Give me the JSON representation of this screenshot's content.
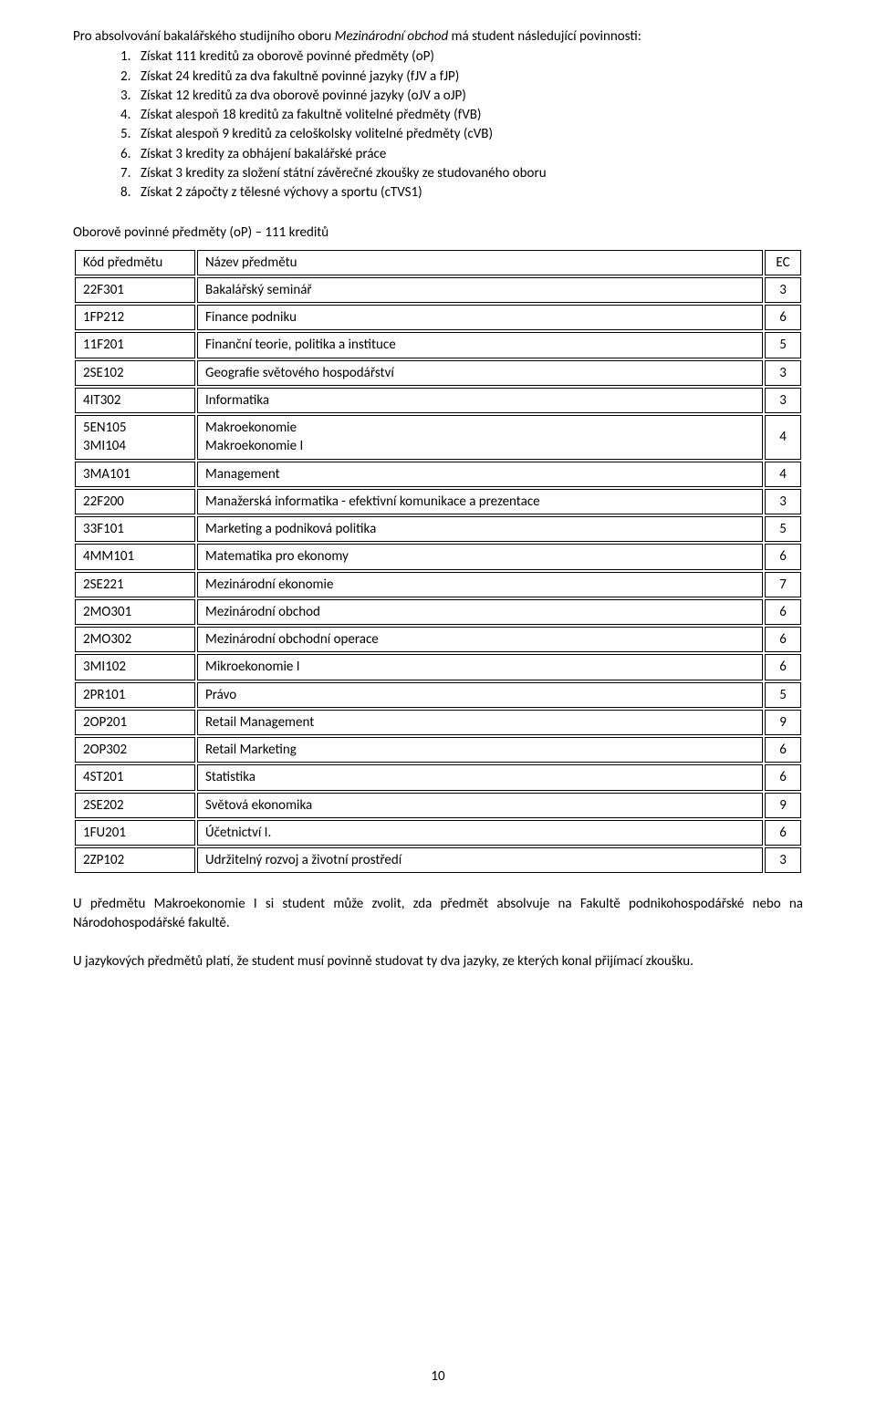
{
  "intro": {
    "prefix": "Pro absolvování bakalářského studijního oboru ",
    "italic": "Mezinárodní obchod",
    "suffix": " má student následující povinnosti:"
  },
  "list": [
    "Získat 111 kreditů za oborově povinné předměty (oP)",
    "Získat 24 kreditů za dva fakultně povinné jazyky (fJV a fJP)",
    "Získat 12 kreditů za dva oborově povinné jazyky (oJV a oJP)",
    "Získat alespoň 18 kreditů za fakultně volitelné předměty (fVB)",
    "Získat alespoň 9 kreditů za celoškolsky volitelné předměty (cVB)",
    "Získat 3 kredity za obhájení bakalářské práce",
    "Získat 3 kredity za složení státní závěrečné zkoušky ze studovaného oboru",
    "Získat 2 zápočty z tělesné výchovy a sportu (cTVS1)"
  ],
  "table": {
    "heading": "Oborově povinné předměty (oP) – 111 kreditů",
    "columns": {
      "code": "Kód předmětu",
      "name": "Název předmětu",
      "ec": "EC"
    },
    "rows": [
      {
        "code": "22F301",
        "name": "Bakalářský seminář",
        "ec": "3"
      },
      {
        "code": "1FP212",
        "name": "Finance podniku",
        "ec": "6"
      },
      {
        "code": "11F201",
        "name": "Finanční teorie, politika a instituce",
        "ec": "5"
      },
      {
        "code": "2SE102",
        "name": "Geografie světového hospodářství",
        "ec": "3"
      },
      {
        "code": "4IT302",
        "name": "Informatika",
        "ec": "3"
      }
    ],
    "merged": {
      "code1": "5EN105",
      "code2": "3MI104",
      "name1": "Makroekonomie",
      "name2": "Makroekonomie I",
      "ec": "4"
    },
    "rows2": [
      {
        "code": "3MA101",
        "name": "Management",
        "ec": "4"
      },
      {
        "code": "22F200",
        "name": "Manažerská informatika - efektivní komunikace a prezentace",
        "ec": "3"
      },
      {
        "code": "33F101",
        "name": "Marketing a podniková politika",
        "ec": "5"
      },
      {
        "code": "4MM101",
        "name": "Matematika pro ekonomy",
        "ec": "6"
      },
      {
        "code": "2SE221",
        "name": "Mezinárodní ekonomie",
        "ec": "7"
      },
      {
        "code": "2MO301",
        "name": "Mezinárodní obchod",
        "ec": "6"
      },
      {
        "code": "2MO302",
        "name": "Mezinárodní obchodní operace",
        "ec": "6"
      },
      {
        "code": "3MI102",
        "name": "Mikroekonomie I",
        "ec": "6"
      },
      {
        "code": "2PR101",
        "name": "Právo",
        "ec": "5"
      },
      {
        "code": "2OP201",
        "name": "Retail Management",
        "ec": "9"
      },
      {
        "code": "2OP302",
        "name": "Retail Marketing",
        "ec": "6"
      },
      {
        "code": "4ST201",
        "name": "Statistika",
        "ec": "6"
      },
      {
        "code": "2SE202",
        "name": "Světová ekonomika",
        "ec": "9"
      },
      {
        "code": "1FU201",
        "name": "Účetnictví I.",
        "ec": "6"
      },
      {
        "code": "2ZP102",
        "name": "Udržitelný rozvoj a životní prostředí",
        "ec": "3"
      }
    ]
  },
  "para1": "U předmětu Makroekonomie I si student může zvolit, zda předmět absolvuje na Fakultě podnikohospodářské nebo na Národohospodářské fakultě.",
  "para2": "U jazykových předmětů platí, že student musí povinně studovat ty dva jazyky, ze kterých konal přijímací zkoušku.",
  "page_number": "10"
}
